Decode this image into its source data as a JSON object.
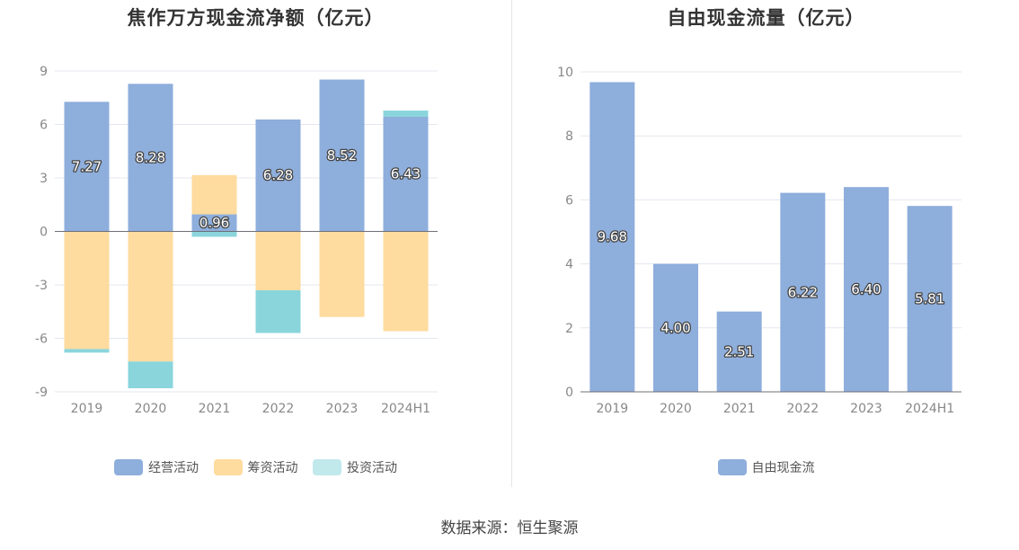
{
  "source": "数据来源：恒生聚源",
  "chart_data": [
    {
      "type": "bar",
      "stacked": true,
      "title": "焦作万方现金流净额（亿元）",
      "categories": [
        "2019",
        "2020",
        "2021",
        "2022",
        "2023",
        "2024H1"
      ],
      "ylim": [
        -9,
        9
      ],
      "yticks": [
        9,
        6,
        3,
        0,
        -3,
        -6,
        -9
      ],
      "legend_position": "bottom",
      "series": [
        {
          "name": "经营活动",
          "color": "#8eaedc",
          "values": [
            7.27,
            8.28,
            0.96,
            6.28,
            8.52,
            6.43
          ],
          "labels": [
            "7.27",
            "8.28",
            "0.96",
            "6.28",
            "8.52",
            "6.43"
          ]
        },
        {
          "name": "筹资活动",
          "color": "#fedb9e",
          "values": [
            -6.6,
            -7.3,
            2.2,
            -3.3,
            -4.8,
            -5.6
          ]
        },
        {
          "name": "投资活动",
          "color": "#8ad5dc",
          "legend_color": "#c1e9ec",
          "values": [
            -0.2,
            -1.5,
            -0.3,
            -2.4,
            0.0,
            0.35
          ]
        }
      ]
    },
    {
      "type": "bar",
      "title": "自由现金流量（亿元）",
      "categories": [
        "2019",
        "2020",
        "2021",
        "2022",
        "2023",
        "2024H1"
      ],
      "ylim": [
        0,
        10
      ],
      "yticks": [
        10,
        8,
        6,
        4,
        2,
        0
      ],
      "legend_position": "bottom",
      "series": [
        {
          "name": "自由现金流",
          "color": "#8eaedc",
          "values": [
            9.68,
            4.0,
            2.51,
            6.22,
            6.4,
            5.81
          ],
          "labels": [
            "9.68",
            "4.00",
            "2.51",
            "6.22",
            "6.40",
            "5.81"
          ]
        }
      ]
    }
  ]
}
